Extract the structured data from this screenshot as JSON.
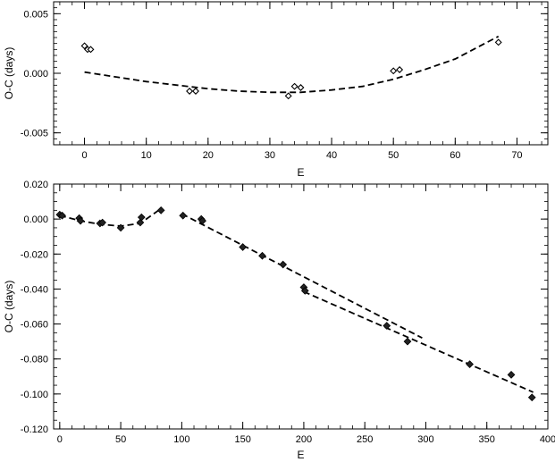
{
  "chart_data": [
    {
      "type": "scatter",
      "title": "",
      "xlabel": "E",
      "ylabel": "O-C (days)",
      "xlim": [
        -5,
        75
      ],
      "ylim": [
        -0.006,
        0.006
      ],
      "grid": false,
      "x_ticks": [
        0,
        10,
        20,
        30,
        40,
        50,
        60,
        70
      ],
      "x_tick_labels": [
        "0",
        "10",
        "20",
        "30",
        "40",
        "50",
        "60",
        "70"
      ],
      "y_ticks": [
        0.005,
        0.0,
        -0.005
      ],
      "y_tick_labels": [
        "0.005",
        "0.000",
        "-0.005"
      ],
      "series": [
        {
          "marker": "diamond-open",
          "x": [
            0,
            0.5,
            1,
            17,
            18,
            33,
            34,
            35,
            50,
            51,
            67
          ],
          "y": [
            0.0023,
            0.002,
            0.002,
            -0.0015,
            -0.0015,
            -0.0019,
            -0.0011,
            -0.0012,
            0.0002,
            0.0003,
            0.0026
          ]
        }
      ],
      "fits": [
        {
          "style": "dashed",
          "x": [
            0,
            5,
            10,
            15,
            20,
            25,
            30,
            35,
            40,
            45,
            50,
            55,
            60,
            67
          ],
          "y": [
            0.0001,
            -0.0003,
            -0.0007,
            -0.001,
            -0.0013,
            -0.0015,
            -0.0016,
            -0.0016,
            -0.0014,
            -0.0011,
            -0.0005,
            0.0003,
            0.0012,
            0.0031
          ]
        }
      ]
    },
    {
      "type": "scatter",
      "title": "",
      "xlabel": "E",
      "ylabel": "O-C (days)",
      "xlim": [
        -5,
        400
      ],
      "ylim": [
        -0.12,
        0.02
      ],
      "grid": false,
      "x_ticks": [
        0,
        50,
        100,
        150,
        200,
        250,
        300,
        350,
        400
      ],
      "x_tick_labels": [
        "0",
        "50",
        "100",
        "150",
        "200",
        "250",
        "300",
        "350",
        "400"
      ],
      "y_ticks": [
        0.02,
        0.0,
        -0.02,
        -0.04,
        -0.06,
        -0.08,
        -0.1,
        -0.12
      ],
      "y_tick_labels": [
        "0.020",
        "0.000",
        "-0.020",
        "-0.040",
        "-0.060",
        "-0.080",
        "-0.100",
        "-0.120"
      ],
      "series": [
        {
          "marker": "diamond-filled",
          "x": [
            0,
            2,
            16,
            17,
            33,
            35,
            50,
            66,
            67,
            83,
            101,
            116,
            117,
            150,
            166,
            183,
            200,
            201,
            268,
            285,
            336,
            370,
            387
          ],
          "y": [
            0.0025,
            0.002,
            0.0005,
            -0.001,
            -0.0025,
            -0.002,
            -0.005,
            -0.002,
            0.001,
            0.005,
            0.002,
            0.0,
            -0.001,
            -0.016,
            -0.021,
            -0.026,
            -0.039,
            -0.041,
            -0.061,
            -0.07,
            -0.083,
            -0.089,
            -0.102
          ]
        }
      ],
      "fits": [
        {
          "style": "dashed",
          "x": [
            0,
            17,
            33,
            50,
            66,
            83
          ],
          "y": [
            0.002,
            -0.001,
            -0.003,
            -0.004,
            -0.0025,
            0.006
          ]
        },
        {
          "style": "dashed",
          "x": [
            100,
            297
          ],
          "y": [
            0.003,
            -0.068
          ]
        },
        {
          "style": "dashed",
          "x": [
            200,
            388
          ],
          "y": [
            -0.0415,
            -0.099
          ]
        }
      ]
    }
  ]
}
